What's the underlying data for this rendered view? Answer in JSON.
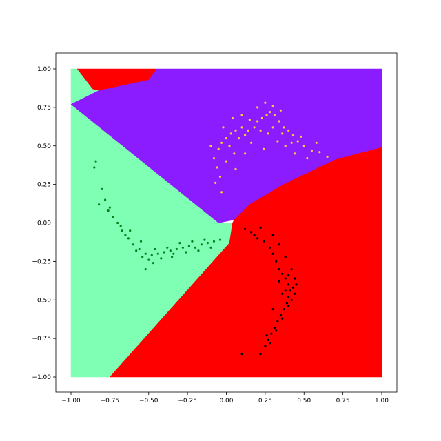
{
  "chart_data": {
    "type": "scatter",
    "title": "",
    "xlabel": "",
    "ylabel": "",
    "xlim": [
      -1.0,
      1.0
    ],
    "ylim": [
      -1.0,
      1.0
    ],
    "grid": false,
    "x_ticks": [
      -1.0,
      -0.75,
      -0.5,
      -0.25,
      0.0,
      0.25,
      0.5,
      0.75,
      1.0
    ],
    "y_ticks": [
      -1.0,
      -0.75,
      -0.5,
      -0.25,
      0.0,
      0.25,
      0.5,
      0.75,
      1.0
    ],
    "x_tick_labels": [
      "−1.00",
      "−0.75",
      "−0.50",
      "−0.25",
      "0.00",
      "0.25",
      "0.50",
      "0.75",
      "1.00"
    ],
    "y_tick_labels": [
      "−1.00",
      "−0.75",
      "−0.50",
      "−0.25",
      "0.00",
      "0.25",
      "0.50",
      "0.75",
      "1.00"
    ],
    "regions": [
      {
        "color": "#7fffb3",
        "polygon": [
          [
            -1.0,
            -1.0
          ],
          [
            -0.75,
            -1.0
          ],
          [
            0.02,
            -0.13
          ],
          [
            0.04,
            0.0
          ],
          [
            -0.05,
            0.0
          ],
          [
            -1.0,
            0.77
          ],
          [
            -1.0,
            1.0
          ],
          [
            -0.96,
            1.0
          ],
          [
            -0.86,
            0.87
          ],
          [
            -0.82,
            0.86
          ],
          [
            -1.0,
            0.77
          ]
        ]
      },
      {
        "color": "#8a1cff",
        "polygon": [
          [
            -1.0,
            0.77
          ],
          [
            -0.82,
            0.86
          ],
          [
            -0.78,
            0.87
          ],
          [
            -0.5,
            0.93
          ],
          [
            -0.45,
            1.0
          ],
          [
            1.0,
            1.0
          ],
          [
            1.0,
            0.49
          ],
          [
            0.7,
            0.41
          ],
          [
            0.37,
            0.25
          ],
          [
            0.15,
            0.12
          ],
          [
            0.05,
            0.02
          ],
          [
            -0.05,
            0.0
          ]
        ]
      },
      {
        "color": "#ff0000",
        "polygon": [
          [
            0.05,
            0.02
          ],
          [
            0.15,
            0.12
          ],
          [
            0.37,
            0.25
          ],
          [
            0.7,
            0.41
          ],
          [
            1.0,
            0.49
          ],
          [
            1.0,
            -1.0
          ],
          [
            -0.75,
            -1.0
          ],
          [
            0.02,
            -0.13
          ],
          [
            0.04,
            0.0
          ]
        ]
      },
      {
        "color": "#ff0000",
        "polygon": [
          [
            -0.96,
            1.0
          ],
          [
            -0.45,
            1.0
          ],
          [
            -0.5,
            0.93
          ],
          [
            -0.78,
            0.87
          ],
          [
            -0.82,
            0.86
          ],
          [
            -0.86,
            0.87
          ]
        ]
      }
    ],
    "series": [
      {
        "color": "#ffc83a",
        "values": [
          [
            -0.08,
            0.42
          ],
          [
            -0.05,
            0.48
          ],
          [
            -0.03,
            0.52
          ],
          [
            0.0,
            0.55
          ],
          [
            0.03,
            0.58
          ],
          [
            0.06,
            0.6
          ],
          [
            0.1,
            0.62
          ],
          [
            0.14,
            0.6
          ],
          [
            0.18,
            0.62
          ],
          [
            0.2,
            0.66
          ],
          [
            0.23,
            0.68
          ],
          [
            0.26,
            0.7
          ],
          [
            0.28,
            0.72
          ],
          [
            0.31,
            0.7
          ],
          [
            0.34,
            0.66
          ],
          [
            0.37,
            0.62
          ],
          [
            0.4,
            0.6
          ],
          [
            0.43,
            0.57
          ],
          [
            0.46,
            0.53
          ],
          [
            0.5,
            0.5
          ],
          [
            0.55,
            0.47
          ],
          [
            0.6,
            0.46
          ],
          [
            0.65,
            0.43
          ],
          [
            -0.06,
            0.36
          ],
          [
            -0.04,
            0.3
          ],
          [
            0.02,
            0.5
          ],
          [
            0.05,
            0.45
          ],
          [
            0.08,
            0.55
          ],
          [
            0.12,
            0.57
          ],
          [
            0.16,
            0.52
          ],
          [
            0.22,
            0.6
          ],
          [
            0.27,
            0.58
          ],
          [
            0.33,
            0.53
          ],
          [
            0.38,
            0.5
          ],
          [
            0.44,
            0.45
          ],
          [
            0.2,
            0.75
          ],
          [
            0.25,
            0.78
          ],
          [
            0.3,
            0.76
          ],
          [
            0.35,
            0.73
          ],
          [
            -0.1,
            0.5
          ],
          [
            -0.02,
            0.62
          ],
          [
            0.04,
            0.68
          ],
          [
            0.1,
            0.7
          ],
          [
            0.15,
            0.67
          ],
          [
            0.0,
            0.4
          ],
          [
            0.06,
            0.35
          ],
          [
            0.12,
            0.45
          ],
          [
            0.24,
            0.48
          ],
          [
            0.3,
            0.62
          ],
          [
            0.36,
            0.58
          ],
          [
            0.42,
            0.52
          ],
          [
            0.48,
            0.56
          ],
          [
            0.52,
            0.42
          ],
          [
            0.58,
            0.52
          ],
          [
            -0.07,
            0.26
          ],
          [
            -0.03,
            0.2
          ]
        ]
      },
      {
        "color": "#0a7d1f",
        "values": [
          [
            -0.8,
            0.22
          ],
          [
            -0.78,
            0.15
          ],
          [
            -0.76,
            0.08
          ],
          [
            -0.73,
            0.04
          ],
          [
            -0.7,
            0.0
          ],
          [
            -0.67,
            -0.05
          ],
          [
            -0.63,
            -0.1
          ],
          [
            -0.6,
            -0.14
          ],
          [
            -0.56,
            -0.17
          ],
          [
            -0.52,
            -0.2
          ],
          [
            -0.48,
            -0.21
          ],
          [
            -0.44,
            -0.2
          ],
          [
            -0.4,
            -0.19
          ],
          [
            -0.36,
            -0.18
          ],
          [
            -0.32,
            -0.17
          ],
          [
            -0.28,
            -0.16
          ],
          [
            -0.24,
            -0.15
          ],
          [
            -0.2,
            -0.16
          ],
          [
            -0.16,
            -0.14
          ],
          [
            -0.12,
            -0.13
          ],
          [
            -0.08,
            -0.12
          ],
          [
            -0.04,
            -0.11
          ],
          [
            -0.82,
            0.12
          ],
          [
            -0.75,
            0.1
          ],
          [
            -0.68,
            -0.02
          ],
          [
            -0.65,
            -0.08
          ],
          [
            -0.58,
            -0.18
          ],
          [
            -0.54,
            -0.22
          ],
          [
            -0.5,
            -0.24
          ],
          [
            -0.46,
            -0.17
          ],
          [
            -0.42,
            -0.23
          ],
          [
            -0.38,
            -0.16
          ],
          [
            -0.34,
            -0.2
          ],
          [
            -0.3,
            -0.13
          ],
          [
            -0.26,
            -0.19
          ],
          [
            -0.22,
            -0.12
          ],
          [
            -0.18,
            -0.18
          ],
          [
            -0.14,
            -0.11
          ],
          [
            -0.1,
            -0.16
          ],
          [
            -0.84,
            0.4
          ],
          [
            -0.85,
            0.36
          ],
          [
            -0.62,
            -0.05
          ],
          [
            -0.55,
            -0.12
          ],
          [
            -0.47,
            -0.26
          ],
          [
            -0.52,
            -0.3
          ],
          [
            -0.35,
            -0.22
          ]
        ]
      },
      {
        "color": "#000000",
        "values": [
          [
            0.12,
            -0.04
          ],
          [
            0.16,
            -0.06
          ],
          [
            0.2,
            -0.1
          ],
          [
            0.24,
            -0.12
          ],
          [
            0.28,
            -0.16
          ],
          [
            0.3,
            -0.2
          ],
          [
            0.32,
            -0.25
          ],
          [
            0.34,
            -0.3
          ],
          [
            0.36,
            -0.33
          ],
          [
            0.38,
            -0.36
          ],
          [
            0.4,
            -0.4
          ],
          [
            0.41,
            -0.44
          ],
          [
            0.4,
            -0.48
          ],
          [
            0.39,
            -0.52
          ],
          [
            0.37,
            -0.56
          ],
          [
            0.35,
            -0.6
          ],
          [
            0.33,
            -0.64
          ],
          [
            0.31,
            -0.68
          ],
          [
            0.29,
            -0.72
          ],
          [
            0.27,
            -0.76
          ],
          [
            0.25,
            -0.8
          ],
          [
            0.22,
            -0.85
          ],
          [
            0.3,
            -0.08
          ],
          [
            0.34,
            -0.14
          ],
          [
            0.38,
            -0.22
          ],
          [
            0.42,
            -0.3
          ],
          [
            0.44,
            -0.36
          ],
          [
            0.43,
            -0.42
          ],
          [
            0.42,
            -0.5
          ],
          [
            0.4,
            -0.54
          ],
          [
            0.36,
            -0.62
          ],
          [
            0.32,
            -0.7
          ],
          [
            0.28,
            -0.78
          ],
          [
            0.26,
            -0.73
          ],
          [
            0.18,
            -0.08
          ],
          [
            0.22,
            -0.03
          ],
          [
            0.36,
            -0.46
          ],
          [
            0.38,
            -0.44
          ],
          [
            0.34,
            -0.38
          ],
          [
            0.4,
            -0.34
          ],
          [
            0.45,
            -0.4
          ],
          [
            0.44,
            -0.46
          ],
          [
            0.1,
            -0.85
          ],
          [
            0.3,
            -0.56
          ]
        ]
      }
    ]
  }
}
